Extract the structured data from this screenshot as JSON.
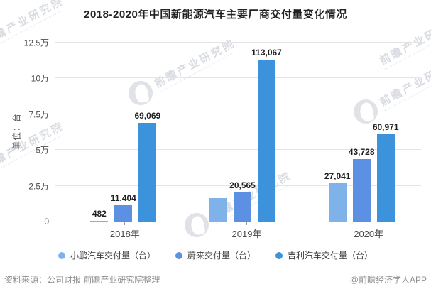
{
  "chart_data": {
    "type": "bar",
    "title": "2018-2020年中国新能源汽车主要厂商交付量变化情况",
    "categories": [
      "2018年",
      "2019年",
      "2020年"
    ],
    "series": [
      {
        "name": "小鹏汽车交付量（台）",
        "color": "#7FB2E8",
        "values": [
          482,
          16608,
          27041
        ],
        "labels": [
          "482",
          "",
          "27,041"
        ]
      },
      {
        "name": "蔚来交付量（台）",
        "color": "#5B90E2",
        "values": [
          11404,
          20565,
          43728
        ],
        "labels": [
          "11,404",
          "20,565",
          "43,728"
        ]
      },
      {
        "name": "吉利汽车交付量（台）",
        "color": "#3D93DB",
        "values": [
          69069,
          113067,
          60971
        ],
        "labels": [
          "69,069",
          "113,067",
          "60,971"
        ]
      }
    ],
    "ylabel": "单位：台",
    "ylim": [
      0,
      125000
    ],
    "yticks": [
      {
        "value": 0,
        "label": "0"
      },
      {
        "value": 25000,
        "label": "2.5万"
      },
      {
        "value": 50000,
        "label": "5万"
      },
      {
        "value": 75000,
        "label": "7.5万"
      },
      {
        "value": 100000,
        "label": "10万"
      },
      {
        "value": 125000,
        "label": "12.5万"
      }
    ],
    "grid": true,
    "legend_position": "bottom"
  },
  "footer": {
    "source": "资料来源：公司财报 前瞻产业研究院整理",
    "handle": "@前瞻经济学人APP"
  },
  "watermark": {
    "text": "前瞻产业研究院"
  }
}
